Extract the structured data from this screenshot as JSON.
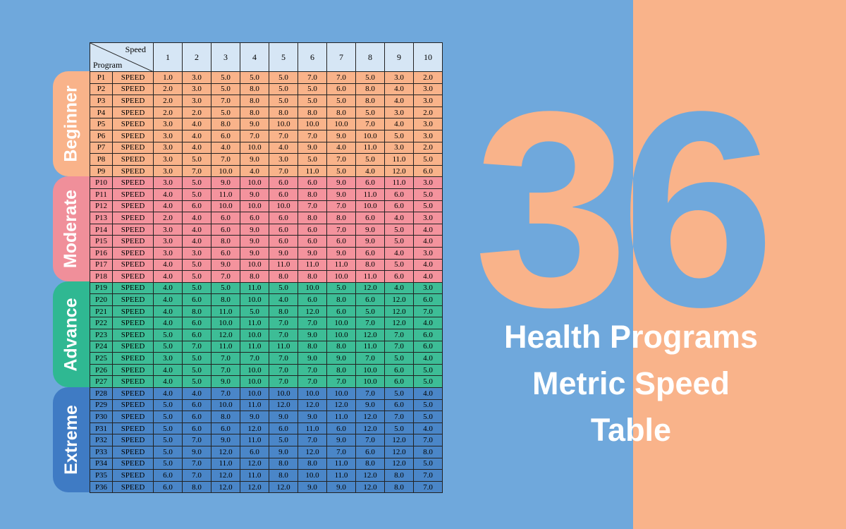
{
  "colors": {
    "background": "#6fa8dc",
    "accent": "#f9b38a",
    "beginner": "#f9b38a",
    "moderate": "#f4939d",
    "advance": "#3dbd96",
    "extreme": "#4a86c8",
    "header": "#d6e6f5"
  },
  "hero": {
    "number": "36",
    "title_lines": [
      "Health Programs",
      "Metric Speed",
      "Table"
    ]
  },
  "table": {
    "corner_top": "Speed",
    "corner_bottom": "Program",
    "columns": [
      "1",
      "2",
      "3",
      "4",
      "5",
      "6",
      "7",
      "8",
      "9",
      "10"
    ],
    "groups": [
      {
        "label": "Beginner",
        "color": "#f9b38a",
        "tab": "#f9b38a",
        "rows": [
          [
            "P1",
            "SPEED",
            "1.0",
            "3.0",
            "5.0",
            "5.0",
            "5.0",
            "7.0",
            "7.0",
            "5.0",
            "3.0",
            "2.0"
          ],
          [
            "P2",
            "SPEED",
            "2.0",
            "3.0",
            "5.0",
            "8.0",
            "5.0",
            "5.0",
            "6.0",
            "8.0",
            "4.0",
            "3.0"
          ],
          [
            "P3",
            "SPEED",
            "2.0",
            "3.0",
            "7.0",
            "8.0",
            "5.0",
            "5.0",
            "5.0",
            "8.0",
            "4.0",
            "3.0"
          ],
          [
            "P4",
            "SPEED",
            "2.0",
            "2.0",
            "5.0",
            "8.0",
            "8.0",
            "8.0",
            "8.0",
            "5.0",
            "3.0",
            "2.0"
          ],
          [
            "P5",
            "SPEED",
            "3.0",
            "4.0",
            "8.0",
            "9.0",
            "10.0",
            "10.0",
            "10.0",
            "7.0",
            "4.0",
            "3.0"
          ],
          [
            "P6",
            "SPEED",
            "3.0",
            "4.0",
            "6.0",
            "7.0",
            "7.0",
            "7.0",
            "9.0",
            "10.0",
            "5.0",
            "3.0"
          ],
          [
            "P7",
            "SPEED",
            "3.0",
            "4.0",
            "4.0",
            "10.0",
            "4.0",
            "9.0",
            "4.0",
            "11.0",
            "3.0",
            "2.0"
          ],
          [
            "P8",
            "SPEED",
            "3.0",
            "5.0",
            "7.0",
            "9.0",
            "3.0",
            "5.0",
            "7.0",
            "5.0",
            "11.0",
            "5.0"
          ],
          [
            "P9",
            "SPEED",
            "3.0",
            "7.0",
            "10.0",
            "4.0",
            "7.0",
            "11.0",
            "5.0",
            "4.0",
            "12.0",
            "6.0"
          ]
        ]
      },
      {
        "label": "Moderate",
        "color": "#f4939d",
        "tab": "#f08f9a",
        "rows": [
          [
            "P10",
            "SPEED",
            "3.0",
            "5.0",
            "9.0",
            "10.0",
            "6.0",
            "6.0",
            "9.0",
            "6.0",
            "11.0",
            "3.0"
          ],
          [
            "P11",
            "SPEED",
            "4.0",
            "5.0",
            "11.0",
            "9.0",
            "6.0",
            "8.0",
            "9.0",
            "11.0",
            "6.0",
            "5.0"
          ],
          [
            "P12",
            "SPEED",
            "4.0",
            "6.0",
            "10.0",
            "10.0",
            "10.0",
            "7.0",
            "7.0",
            "10.0",
            "6.0",
            "5.0"
          ],
          [
            "P13",
            "SPEED",
            "2.0",
            "4.0",
            "6.0",
            "6.0",
            "6.0",
            "8.0",
            "8.0",
            "6.0",
            "4.0",
            "3.0"
          ],
          [
            "P14",
            "SPEED",
            "3.0",
            "4.0",
            "6.0",
            "9.0",
            "6.0",
            "6.0",
            "7.0",
            "9.0",
            "5.0",
            "4.0"
          ],
          [
            "P15",
            "SPEED",
            "3.0",
            "4.0",
            "8.0",
            "9.0",
            "6.0",
            "6.0",
            "6.0",
            "9.0",
            "5.0",
            "4.0"
          ],
          [
            "P16",
            "SPEED",
            "3.0",
            "3.0",
            "6.0",
            "9.0",
            "9.0",
            "9.0",
            "9.0",
            "6.0",
            "4.0",
            "3.0"
          ],
          [
            "P17",
            "SPEED",
            "4.0",
            "5.0",
            "9.0",
            "10.0",
            "11.0",
            "11.0",
            "11.0",
            "8.0",
            "5.0",
            "4.0"
          ],
          [
            "P18",
            "SPEED",
            "4.0",
            "5.0",
            "7.0",
            "8.0",
            "8.0",
            "8.0",
            "10.0",
            "11.0",
            "6.0",
            "4.0"
          ]
        ]
      },
      {
        "label": "Advance",
        "color": "#3dbd96",
        "tab": "#2fb892",
        "rows": [
          [
            "P19",
            "SPEED",
            "4.0",
            "5.0",
            "5.0",
            "11.0",
            "5.0",
            "10.0",
            "5.0",
            "12.0",
            "4.0",
            "3.0"
          ],
          [
            "P20",
            "SPEED",
            "4.0",
            "6.0",
            "8.0",
            "10.0",
            "4.0",
            "6.0",
            "8.0",
            "6.0",
            "12.0",
            "6.0"
          ],
          [
            "P21",
            "SPEED",
            "4.0",
            "8.0",
            "11.0",
            "5.0",
            "8.0",
            "12.0",
            "6.0",
            "5.0",
            "12.0",
            "7.0"
          ],
          [
            "P22",
            "SPEED",
            "4.0",
            "6.0",
            "10.0",
            "11.0",
            "7.0",
            "7.0",
            "10.0",
            "7.0",
            "12.0",
            "4.0"
          ],
          [
            "P23",
            "SPEED",
            "5.0",
            "6.0",
            "12.0",
            "10.0",
            "7.0",
            "9.0",
            "10.0",
            "12.0",
            "7.0",
            "6.0"
          ],
          [
            "P24",
            "SPEED",
            "5.0",
            "7.0",
            "11.0",
            "11.0",
            "11.0",
            "8.0",
            "8.0",
            "11.0",
            "7.0",
            "6.0"
          ],
          [
            "P25",
            "SPEED",
            "3.0",
            "5.0",
            "7.0",
            "7.0",
            "7.0",
            "9.0",
            "9.0",
            "7.0",
            "5.0",
            "4.0"
          ],
          [
            "P26",
            "SPEED",
            "4.0",
            "5.0",
            "7.0",
            "10.0",
            "7.0",
            "7.0",
            "8.0",
            "10.0",
            "6.0",
            "5.0"
          ],
          [
            "P27",
            "SPEED",
            "4.0",
            "5.0",
            "9.0",
            "10.0",
            "7.0",
            "7.0",
            "7.0",
            "10.0",
            "6.0",
            "5.0"
          ]
        ]
      },
      {
        "label": "Extreme",
        "color": "#4a86c8",
        "tab": "#3f7bc4",
        "rows": [
          [
            "P28",
            "SPEED",
            "4.0",
            "4.0",
            "7.0",
            "10.0",
            "10.0",
            "10.0",
            "10.0",
            "7.0",
            "5.0",
            "4.0"
          ],
          [
            "P29",
            "SPEED",
            "5.0",
            "6.0",
            "10.0",
            "11.0",
            "12.0",
            "12.0",
            "12.0",
            "9.0",
            "6.0",
            "5.0"
          ],
          [
            "P30",
            "SPEED",
            "5.0",
            "6.0",
            "8.0",
            "9.0",
            "9.0",
            "9.0",
            "11.0",
            "12.0",
            "7.0",
            "5.0"
          ],
          [
            "P31",
            "SPEED",
            "5.0",
            "6.0",
            "6.0",
            "12.0",
            "6.0",
            "11.0",
            "6.0",
            "12.0",
            "5.0",
            "4.0"
          ],
          [
            "P32",
            "SPEED",
            "5.0",
            "7.0",
            "9.0",
            "11.0",
            "5.0",
            "7.0",
            "9.0",
            "7.0",
            "12.0",
            "7.0"
          ],
          [
            "P33",
            "SPEED",
            "5.0",
            "9.0",
            "12.0",
            "6.0",
            "9.0",
            "12.0",
            "7.0",
            "6.0",
            "12.0",
            "8.0"
          ],
          [
            "P34",
            "SPEED",
            "5.0",
            "7.0",
            "11.0",
            "12.0",
            "8.0",
            "8.0",
            "11.0",
            "8.0",
            "12.0",
            "5.0"
          ],
          [
            "P35",
            "SPEED",
            "6.0",
            "7.0",
            "12.0",
            "11.0",
            "8.0",
            "10.0",
            "11.0",
            "12.0",
            "8.0",
            "7.0"
          ],
          [
            "P36",
            "SPEED",
            "6.0",
            "8.0",
            "12.0",
            "12.0",
            "12.0",
            "9.0",
            "9.0",
            "12.0",
            "8.0",
            "7.0"
          ]
        ]
      }
    ]
  }
}
